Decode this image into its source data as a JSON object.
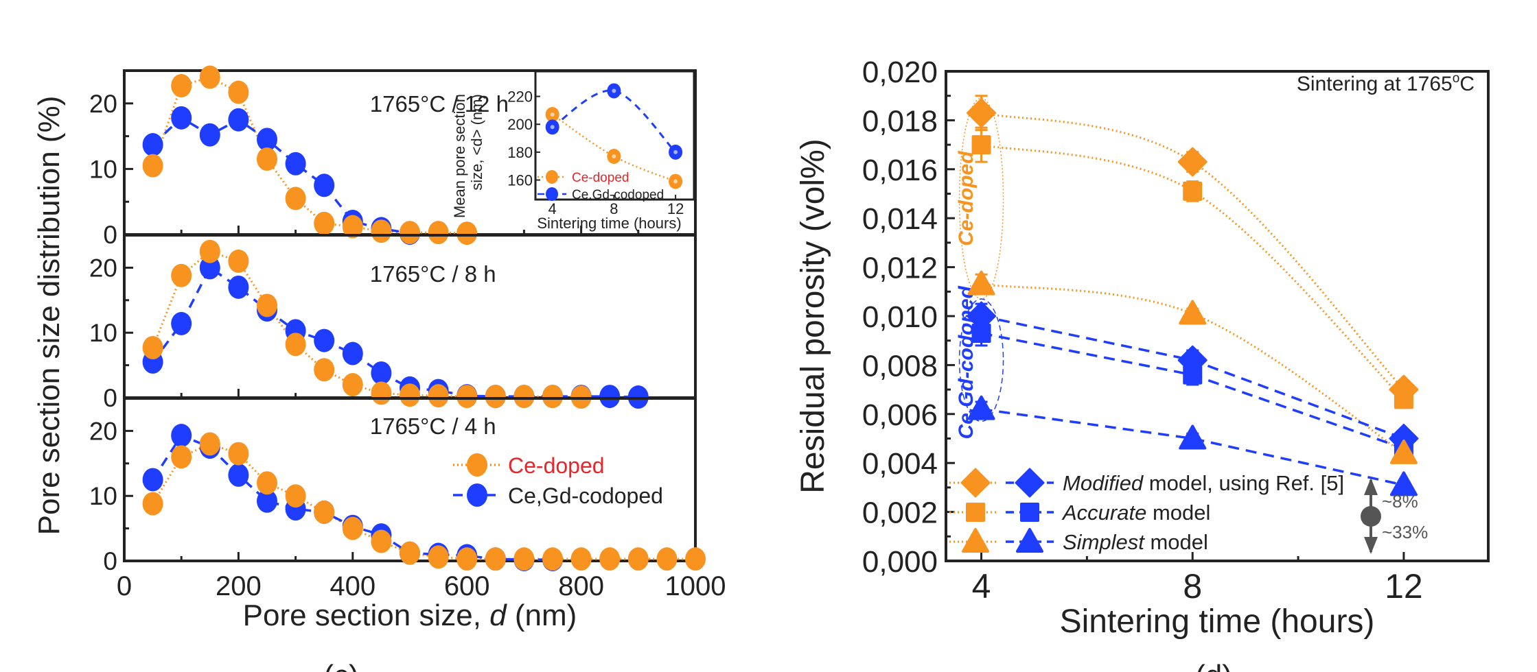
{
  "colors": {
    "ce_doped": "#F7931E",
    "codoped": "#1F3DFF",
    "ce_label_red": "#E8262A",
    "arrow_gray": "#555555"
  },
  "chart_data": [
    {
      "type": "line",
      "panel_label": "(c)",
      "xlabel_prefix": "Pore section size, ",
      "xlabel_var": "d",
      "xlabel_suffix": " (nm)",
      "ylabel": "Pore section size distribution (%)",
      "xlim": [
        0,
        1000
      ],
      "xticks": [
        "0",
        "200",
        "400",
        "600",
        "800",
        "1000"
      ],
      "ylim": [
        0,
        25
      ],
      "yticks": [
        "0",
        "10",
        "20"
      ],
      "legend": {
        "placement": "right",
        "entries": [
          "Ce-doped",
          "Ce,Gd-codoped"
        ]
      },
      "x": [
        50,
        100,
        150,
        200,
        250,
        300,
        350,
        400,
        450,
        500,
        550,
        600,
        650,
        700,
        750,
        800,
        850,
        900,
        950,
        1000
      ],
      "panels": [
        {
          "label": "1765°C / 12 h",
          "series": [
            {
              "name": "Ce-doped",
              "values": [
                10.5,
                22.7,
                24,
                21.7,
                11.5,
                5.5,
                1.7,
                1.2,
                0.5,
                0.3,
                0.3,
                0.2,
                null,
                null,
                null,
                null,
                null,
                null,
                null,
                null
              ]
            },
            {
              "name": "Ce,Gd-codoped",
              "values": [
                13.7,
                17.8,
                15.2,
                17.5,
                14.5,
                10.8,
                7.5,
                2,
                0.9,
                0.2,
                null,
                null,
                null,
                null,
                null,
                null,
                null,
                null,
                null,
                null
              ]
            }
          ]
        },
        {
          "label": "1765°C / 8 h",
          "series": [
            {
              "name": "Ce-doped",
              "values": [
                7.7,
                18.8,
                22.5,
                21,
                14.2,
                8.2,
                4.3,
                2,
                0.7,
                0.4,
                0.3,
                0.2,
                0.2,
                0.2,
                0.2,
                0.1,
                null,
                null,
                null,
                null
              ]
            },
            {
              "name": "Ce,Gd-codoped",
              "values": [
                5.5,
                11.4,
                20,
                17,
                13.5,
                10.3,
                8.8,
                6.8,
                3.8,
                1.5,
                1.1,
                0.3,
                0.2,
                0.2,
                0.2,
                0.2,
                0.2,
                0.1,
                null,
                null
              ]
            }
          ]
        },
        {
          "label": "1765°C / 4 h",
          "series": [
            {
              "name": "Ce-doped",
              "values": [
                8.8,
                16,
                18,
                16.5,
                12,
                10,
                7.5,
                5,
                3,
                1.2,
                0.6,
                0.3,
                0.3,
                0.3,
                0.3,
                0.3,
                0.3,
                0.3,
                0.3,
                0.3
              ]
            },
            {
              "name": "Ce,Gd-codoped",
              "values": [
                12.5,
                19.3,
                17.5,
                13.2,
                9.2,
                8,
                7.5,
                5.3,
                4,
                1.2,
                1,
                0.8,
                0.3,
                0.2,
                0.2,
                null,
                null,
                null,
                null,
                null
              ]
            }
          ]
        }
      ],
      "inset": {
        "type": "line",
        "ylabel_line1": "Mean pore section",
        "ylabel_line2": "size, <d> (nm)",
        "xlabel": "Sintering time (hours)",
        "x": [
          4,
          8,
          12
        ],
        "xticks": [
          "4",
          "8",
          "12"
        ],
        "yticks": [
          "160",
          "180",
          "200",
          "220"
        ],
        "xlim": [
          2.9,
          13.2
        ],
        "ylim": [
          146,
          238
        ],
        "series": [
          {
            "name": "Ce-doped",
            "values": [
              207,
              177,
              159
            ]
          },
          {
            "name": "Ce,Gd-codoped",
            "values": [
              198,
              224,
              180
            ]
          }
        ]
      }
    },
    {
      "type": "line",
      "panel_label": "(d)",
      "annotation": "Sintering at 1765",
      "annotation_sup": "o",
      "annotation_unit": "C",
      "xlabel": "Sintering time (hours)",
      "ylabel": "Residual porosity (vol%)",
      "x": [
        4,
        8,
        12
      ],
      "xticks": [
        "4",
        "8",
        "12"
      ],
      "xlim": [
        3.33,
        13.6
      ],
      "ylim": [
        0,
        0.02
      ],
      "yticks": [
        "0,000",
        "0,002",
        "0,004",
        "0,006",
        "0,008",
        "0,010",
        "0,012",
        "0,014",
        "0,016",
        "0,018",
        "0,020"
      ],
      "group_labels": {
        "ce": "Ce-doped",
        "codoped": "Ce,Gd-codoped"
      },
      "series": [
        {
          "group": "ce",
          "model": "modified",
          "marker": "diamond",
          "values": [
            0.0183,
            0.0163,
            0.007
          ],
          "errors": [
            0.0007,
            0.0004,
            0.0002
          ]
        },
        {
          "group": "ce",
          "model": "accurate",
          "marker": "square",
          "values": [
            0.017,
            0.0151,
            0.0066
          ],
          "errors": [
            0.0007,
            0.0004,
            0.0002
          ]
        },
        {
          "group": "ce",
          "model": "simplest",
          "marker": "triangle",
          "values": [
            0.0113,
            0.0101,
            0.0044
          ],
          "errors": [
            0.0004,
            0.0002,
            0.0001
          ]
        },
        {
          "group": "codoped",
          "model": "modified",
          "marker": "diamond",
          "values": [
            0.01,
            0.0082,
            0.005
          ],
          "errors": [
            0.0005,
            0.0004,
            0.0002
          ]
        },
        {
          "group": "codoped",
          "model": "accurate",
          "marker": "square",
          "values": [
            0.0093,
            0.0076,
            0.0046
          ],
          "errors": [
            0.0005,
            0.0004,
            0.0002
          ]
        },
        {
          "group": "codoped",
          "model": "simplest",
          "marker": "triangle",
          "values": [
            0.0062,
            0.005,
            0.0031
          ],
          "errors": [
            0.0003,
            0.0002,
            0.0001
          ]
        }
      ],
      "legend": {
        "placement": "bottom-left",
        "entries": [
          {
            "marker": "diamond",
            "italic": "Modified",
            "rest": " model, using Ref. [5]"
          },
          {
            "marker": "square",
            "italic": "Accurate",
            "rest": " model"
          },
          {
            "marker": "triangle",
            "italic": "Simplest",
            "rest": " model"
          }
        ]
      },
      "range_arrow": {
        "up_label": "~8%",
        "down_label": "~33%"
      }
    }
  ]
}
